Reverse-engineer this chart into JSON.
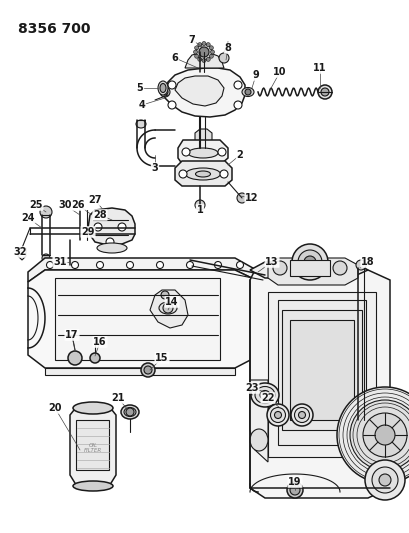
{
  "title": "8356 700",
  "bg_color": "#ffffff",
  "line_color": "#1a1a1a",
  "label_color": "#1a1a1a",
  "title_fontsize": 10,
  "label_fontsize": 7,
  "fig_width": 4.1,
  "fig_height": 5.33,
  "dpi": 100
}
